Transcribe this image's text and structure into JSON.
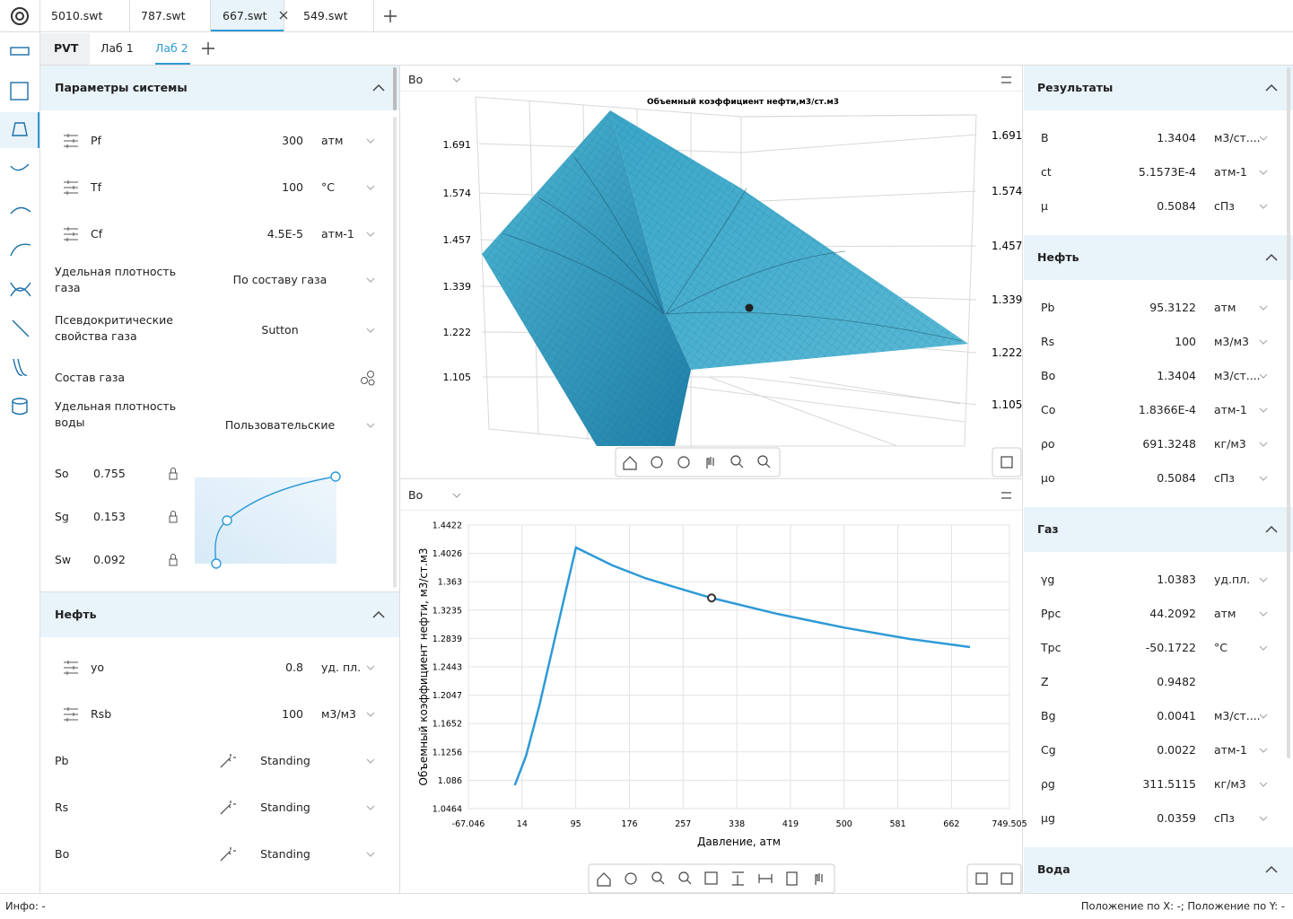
{
  "file_tabs": [
    "5010.swt",
    "787.swt",
    "667.swt",
    "549.swt"
  ],
  "sub_tabs": [
    "PVT",
    "Лаб 1",
    "Лаб 2"
  ],
  "left": {
    "system": {
      "title": "Параметры системы",
      "params": [
        {
          "label": "Pf",
          "value": "300",
          "unit": "атм"
        },
        {
          "label": "Tf",
          "value": "100",
          "unit": "°C"
        },
        {
          "label": "Cf",
          "value": "4.5E-5",
          "unit": "атм-1"
        }
      ],
      "options": [
        {
          "label": "Удельная плотность газа",
          "value": "По составу газа"
        },
        {
          "label": "Псевдокритические свойства газа",
          "value": "Sutton"
        },
        {
          "label": "Состав газа"
        },
        {
          "label": "Удельная плотность воды",
          "value": "Пользовательские"
        }
      ],
      "saturations": [
        {
          "label": "So",
          "value": "0.755"
        },
        {
          "label": "Sg",
          "value": "0.153"
        },
        {
          "label": "Sw",
          "value": "0.092"
        }
      ]
    },
    "oil": {
      "title": "Нефть",
      "params": [
        {
          "label": "yo",
          "value": "0.8",
          "unit": "уд. пл."
        },
        {
          "label": "Rsb",
          "value": "100",
          "unit": "м3/м3"
        }
      ],
      "correlations": [
        {
          "label": "Pb",
          "value": "Standing"
        },
        {
          "label": "Rs",
          "value": "Standing"
        },
        {
          "label": "Bo",
          "value": "Standing"
        }
      ]
    }
  },
  "panel_headers": [
    "Bo",
    "Bo"
  ],
  "surface": {
    "title": "Объемный коэффициент нефти,м3/ст.м3",
    "zticks": [
      1.691,
      1.574,
      1.457,
      1.339,
      1.222,
      1.105
    ]
  },
  "chart_data": {
    "type": "line",
    "x_label": "Давление, атм",
    "y_label": "Объемный коэффициент нефти, м3/ст.м3",
    "x": [
      3,
      20,
      40,
      60,
      80,
      95.3122,
      150,
      200,
      250,
      300,
      400,
      500,
      600,
      690
    ],
    "values": [
      1.079,
      1.12,
      1.19,
      1.27,
      1.35,
      1.4108,
      1.386,
      1.368,
      1.354,
      1.3404,
      1.318,
      1.299,
      1.283,
      1.2718
    ],
    "color": "#2e9ad6",
    "highlight": {
      "x": 300,
      "y": 1.3404
    },
    "xlim": [
      -67.046,
      749.505
    ],
    "xticks": [
      -67.046,
      14,
      95,
      176,
      257,
      338,
      419,
      500,
      581,
      662,
      749.505
    ],
    "ylim": [
      1.0464,
      1.4422
    ],
    "yticks": [
      1.0464,
      1.086,
      1.1256,
      1.1652,
      1.2047,
      1.2443,
      1.2839,
      1.3235,
      1.363,
      1.4026,
      1.4422
    ],
    "grid": true
  },
  "right": [
    {
      "title": "Результаты",
      "rows": [
        {
          "label": "B",
          "value": "1.3404",
          "unit": "м3/ст...."
        },
        {
          "label": "ct",
          "value": "5.1573E-4",
          "unit": "атм-1"
        },
        {
          "label": "μ",
          "value": "0.5084",
          "unit": "сПз"
        }
      ]
    },
    {
      "title": "Нефть",
      "rows": [
        {
          "label": "Pb",
          "value": "95.3122",
          "unit": "атм"
        },
        {
          "label": "Rs",
          "value": "100",
          "unit": "м3/м3"
        },
        {
          "label": "Bo",
          "value": "1.3404",
          "unit": "м3/ст...."
        },
        {
          "label": "Co",
          "value": "1.8366E-4",
          "unit": "атм-1"
        },
        {
          "label": "ρo",
          "value": "691.3248",
          "unit": "кг/м3"
        },
        {
          "label": "μo",
          "value": "0.5084",
          "unit": "сПз"
        }
      ]
    },
    {
      "title": "Газ",
      "rows": [
        {
          "label": "γg",
          "value": "1.0383",
          "unit": "уд.пл."
        },
        {
          "label": "Ppc",
          "value": "44.2092",
          "unit": "атм"
        },
        {
          "label": "Tpc",
          "value": "-50.1722",
          "unit": "°C"
        },
        {
          "label": "Z",
          "value": "0.9482"
        },
        {
          "label": "Bg",
          "value": "0.0041",
          "unit": "м3/ст...."
        },
        {
          "label": "Cg",
          "value": "0.0022",
          "unit": "атм-1"
        },
        {
          "label": "ρg",
          "value": "311.5115",
          "unit": "кг/м3"
        },
        {
          "label": "μg",
          "value": "0.0359",
          "unit": "сПз"
        }
      ]
    },
    {
      "title": "Вода",
      "rows": []
    }
  ],
  "status": {
    "info": "Инфо: -",
    "position": "Положение по X: -; Положение по Y: -"
  }
}
